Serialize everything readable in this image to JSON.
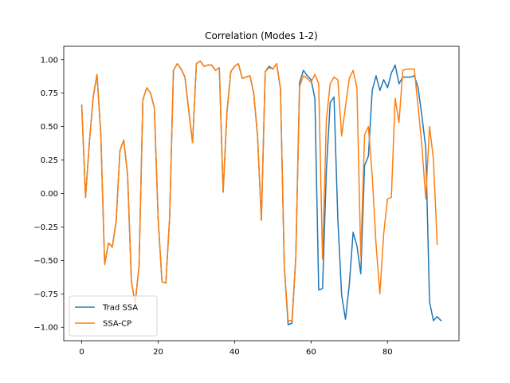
{
  "chart_data": {
    "type": "line",
    "title": "Correlation (Modes 1-2)",
    "xlabel": "",
    "ylabel": "",
    "xlim": [
      -4.7,
      98.7
    ],
    "ylim": [
      -1.1,
      1.1
    ],
    "xticks": [
      0,
      20,
      40,
      60,
      80
    ],
    "yticks": [
      -1.0,
      -0.75,
      -0.5,
      -0.25,
      0.0,
      0.25,
      0.5,
      0.75,
      1.0
    ],
    "ytick_labels": [
      "−1.00",
      "−0.75",
      "−0.50",
      "−0.25",
      "0.00",
      "0.25",
      "0.50",
      "0.75",
      "1.00"
    ],
    "grid": false,
    "legend": "lower-left",
    "series": [
      {
        "name": "Trad SSA",
        "color": "#1f77b4",
        "values": [
          0.66,
          -0.03,
          0.38,
          0.72,
          0.89,
          0.44,
          -0.53,
          -0.37,
          -0.4,
          -0.21,
          0.32,
          0.4,
          0.14,
          -0.66,
          -0.82,
          -0.54,
          0.7,
          0.79,
          0.75,
          0.64,
          -0.19,
          -0.66,
          -0.67,
          -0.18,
          0.92,
          0.97,
          0.93,
          0.87,
          0.62,
          0.38,
          0.97,
          0.99,
          0.95,
          0.96,
          0.96,
          0.92,
          0.94,
          0.01,
          0.61,
          0.91,
          0.95,
          0.97,
          0.86,
          0.87,
          0.88,
          0.75,
          0.43,
          -0.2,
          0.91,
          0.95,
          0.93,
          0.97,
          0.78,
          -0.55,
          -0.98,
          -0.97,
          -0.48,
          0.83,
          0.92,
          0.88,
          0.85,
          0.71,
          -0.72,
          -0.71,
          0.17,
          0.68,
          0.72,
          -0.19,
          -0.76,
          -0.94,
          -0.68,
          -0.29,
          -0.39,
          -0.6,
          0.21,
          0.28,
          0.77,
          0.88,
          0.77,
          0.85,
          0.79,
          0.9,
          0.96,
          0.82,
          0.87,
          0.87,
          0.87,
          0.88,
          0.79,
          0.58,
          0.34,
          -0.81,
          -0.95,
          -0.92,
          -0.95
        ]
      },
      {
        "name": "SSA-CP",
        "color": "#ff7f0e",
        "values": [
          0.66,
          -0.03,
          0.38,
          0.72,
          0.89,
          0.44,
          -0.53,
          -0.37,
          -0.4,
          -0.21,
          0.32,
          0.4,
          0.14,
          -0.66,
          -0.82,
          -0.54,
          0.7,
          0.79,
          0.75,
          0.64,
          -0.19,
          -0.66,
          -0.67,
          -0.18,
          0.92,
          0.97,
          0.93,
          0.87,
          0.62,
          0.38,
          0.97,
          0.99,
          0.95,
          0.96,
          0.96,
          0.92,
          0.94,
          0.01,
          0.61,
          0.91,
          0.95,
          0.97,
          0.86,
          0.87,
          0.88,
          0.75,
          0.43,
          -0.2,
          0.91,
          0.94,
          0.93,
          0.97,
          0.78,
          -0.55,
          -0.95,
          -0.95,
          -0.48,
          0.8,
          0.88,
          0.86,
          0.83,
          0.89,
          0.82,
          -0.49,
          0.55,
          0.82,
          0.87,
          0.85,
          0.43,
          0.65,
          0.86,
          0.92,
          0.79,
          -0.47,
          0.44,
          0.5,
          0.13,
          -0.38,
          -0.75,
          -0.3,
          -0.04,
          -0.03,
          0.71,
          0.53,
          0.92,
          0.93,
          0.93,
          0.93,
          0.65,
          0.35,
          -0.04,
          0.5,
          0.26,
          -0.38
        ]
      }
    ]
  }
}
